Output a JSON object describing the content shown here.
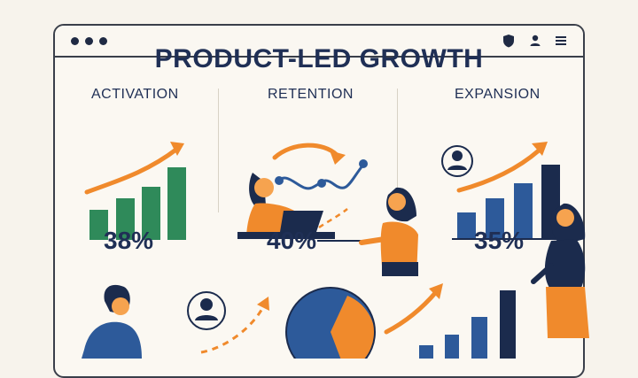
{
  "headline": "PRODUCT-LED GROWTH",
  "sections": [
    {
      "label": "ACTIVATION",
      "metric": "38%"
    },
    {
      "label": "RETENTION",
      "metric": "40%"
    },
    {
      "label": "EXPANSION",
      "metric": "35%"
    }
  ],
  "titlebar": {
    "icons": [
      "window-dot-icon",
      "shield-icon",
      "user-icon",
      "menu-icon"
    ]
  },
  "colors": {
    "navy": "#1f2f55",
    "orange": "#f08a2c",
    "green": "#2f8a5a",
    "blue": "#2d5a9a"
  }
}
